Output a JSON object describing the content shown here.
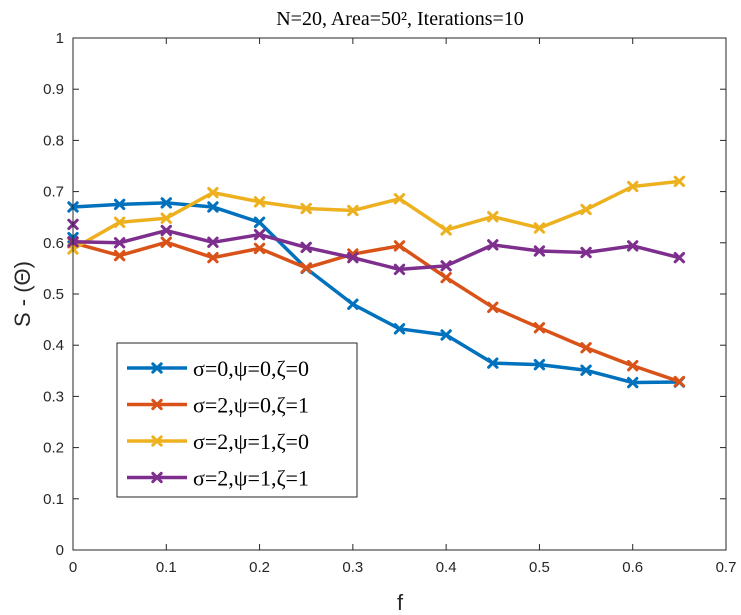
{
  "chart_data": {
    "type": "line",
    "title": "N=20, Area=50², Iterations=10",
    "xlabel": "f",
    "ylabel": "S - (Θ)",
    "xlim": [
      0,
      0.7
    ],
    "ylim": [
      0,
      1
    ],
    "xticks": [
      "0",
      "0.1",
      "0.2",
      "0.3",
      "0.4",
      "0.5",
      "0.6",
      "0.7"
    ],
    "yticks": [
      "0",
      "0.1",
      "0.2",
      "0.3",
      "0.4",
      "0.5",
      "0.6",
      "0.7",
      "0.8",
      "0.9",
      "1"
    ],
    "x": [
      0,
      0.05,
      0.1,
      0.15,
      0.2,
      0.25,
      0.3,
      0.35,
      0.4,
      0.45,
      0.5,
      0.55,
      0.6,
      0.65
    ],
    "grid": false,
    "legend_position": "lower-left",
    "marker": "x",
    "series": [
      {
        "name": "σ=0,ψ=0,ζ=0",
        "color": "#0072BD",
        "values": [
          0.67,
          0.675,
          0.678,
          0.67,
          0.64,
          0.55,
          0.48,
          0.432,
          0.42,
          0.365,
          0.362,
          0.351,
          0.327,
          0.328
        ],
        "extra_points": [
          {
            "x": 0,
            "y": 0.61
          }
        ]
      },
      {
        "name": "σ=2,ψ=0,ζ=1",
        "color": "#D95319",
        "values": [
          0.6,
          0.575,
          0.601,
          0.571,
          0.589,
          0.551,
          0.578,
          0.594,
          0.532,
          0.474,
          0.434,
          0.395,
          0.36,
          0.329
        ],
        "extra_points": []
      },
      {
        "name": "σ=2,ψ=1,ζ=0",
        "color": "#EDB120",
        "values": [
          0.588,
          0.64,
          0.648,
          0.698,
          0.68,
          0.667,
          0.663,
          0.686,
          0.625,
          0.651,
          0.629,
          0.665,
          0.71,
          0.72
        ],
        "extra_points": []
      },
      {
        "name": "σ=2,ψ=1,ζ=1",
        "color": "#7E2F8E",
        "values": [
          0.602,
          0.6,
          0.624,
          0.601,
          0.616,
          0.591,
          0.571,
          0.548,
          0.555,
          0.596,
          0.584,
          0.581,
          0.594,
          0.571
        ],
        "extra_points": [
          {
            "x": 0,
            "y": 0.636
          }
        ]
      }
    ]
  }
}
